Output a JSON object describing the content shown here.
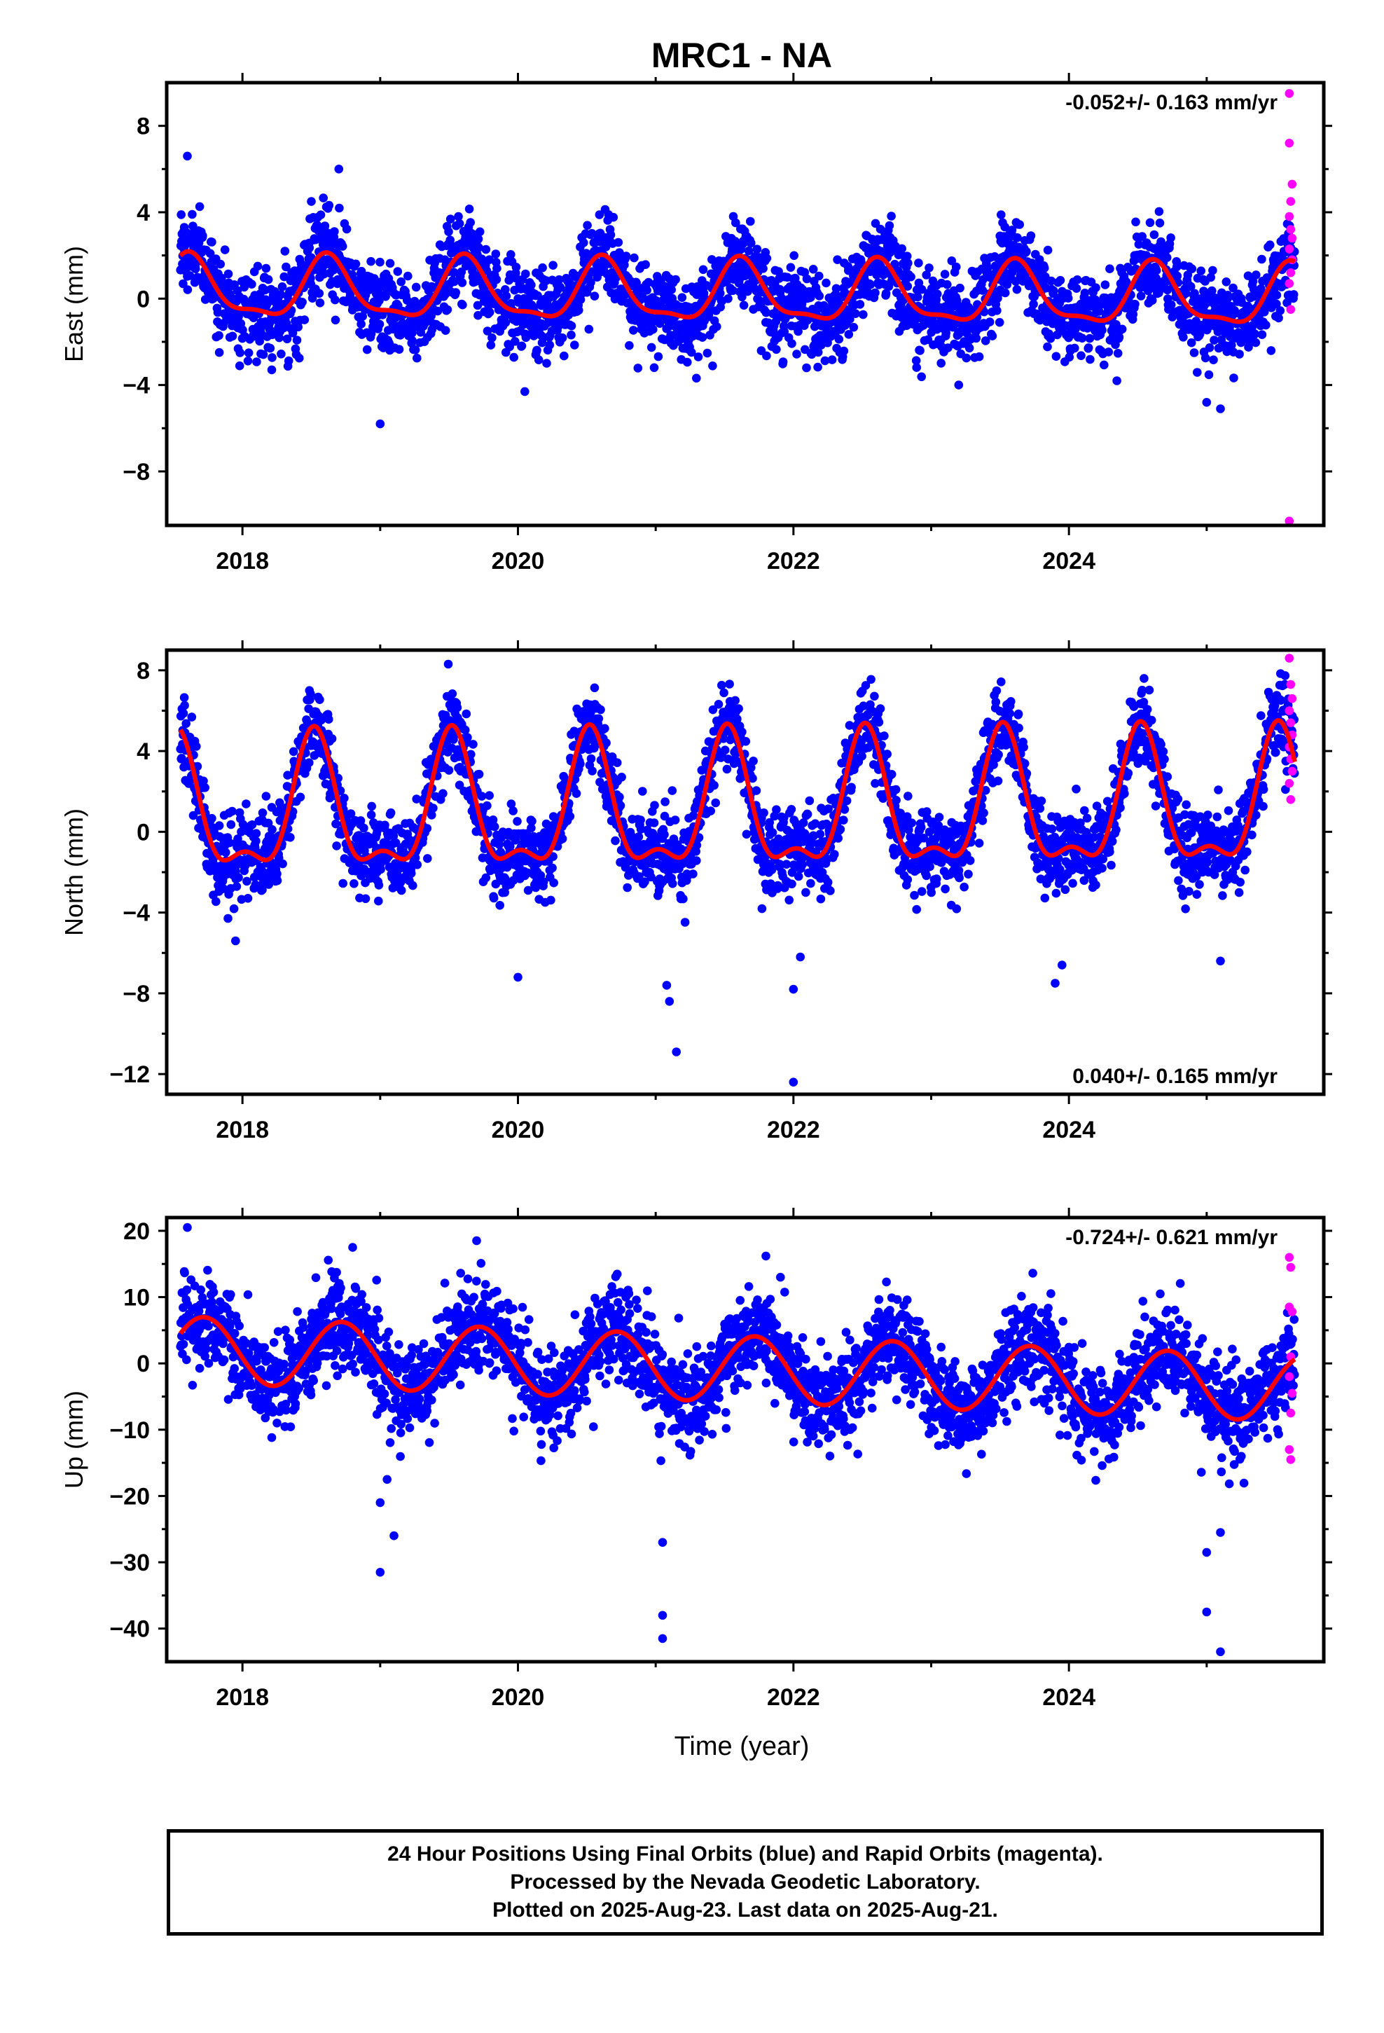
{
  "title": "MRC1 - NA",
  "xlabel": "Time (year)",
  "caption": {
    "line1": "24 Hour Positions Using Final Orbits (blue) and Rapid Orbits (magenta).",
    "line2": "Processed by the Nevada Geodetic Laboratory.",
    "line3": "Plotted on 2025-Aug-23. Last data on 2025-Aug-21."
  },
  "colors": {
    "final": "#0000ff",
    "rapid": "#ff00ff",
    "model": "#ff0000",
    "frame": "#000000"
  },
  "chart_data": [
    {
      "type": "scatter",
      "ylabel": "East (mm)",
      "rate_label": "-0.052+/- 0.163 mm/yr",
      "rate_position": "top-right",
      "xlim": [
        2017.45,
        2025.85
      ],
      "ylim": [
        -10.5,
        10
      ],
      "yticks": [
        8,
        4,
        0,
        -4,
        -8
      ],
      "ytick_labels": [
        "8",
        "4",
        "0",
        "−4",
        "−8"
      ],
      "xticks": [
        2018,
        2020,
        2022,
        2024
      ],
      "xtick_labels": [
        "2018",
        "2020",
        "2022",
        "2024"
      ],
      "date_start": 2017.55,
      "date_end": 2025.64,
      "model": {
        "offset": 0.4,
        "rate": -0.052,
        "annual_amp": 1.35,
        "annual_peak": 0.62,
        "semi_amp": 0.45,
        "semi_peak": 0.6
      },
      "noise_sd": 1.0,
      "final_series": "final orbits",
      "rapid_series": "rapid orbits",
      "outliers": [
        [
          2019.0,
          -5.8
        ],
        [
          2017.6,
          6.6
        ],
        [
          2018.7,
          6.0
        ],
        [
          2018.5,
          4.5
        ],
        [
          2025.1,
          -5.1
        ],
        [
          2025.0,
          -4.8
        ],
        [
          2020.05,
          -4.3
        ],
        [
          2023.2,
          -4.0
        ]
      ],
      "rapid_points": [
        [
          2025.6,
          9.5
        ],
        [
          2025.6,
          7.2
        ],
        [
          2025.62,
          5.3
        ],
        [
          2025.61,
          4.5
        ],
        [
          2025.6,
          3.8
        ],
        [
          2025.61,
          3.2
        ],
        [
          2025.62,
          2.8
        ],
        [
          2025.6,
          2.3
        ],
        [
          2025.62,
          1.8
        ],
        [
          2025.61,
          1.2
        ],
        [
          2025.6,
          0.7
        ],
        [
          2025.61,
          -0.5
        ],
        [
          2025.6,
          -10.3
        ]
      ]
    },
    {
      "type": "scatter",
      "ylabel": "North (mm)",
      "rate_label": "0.040+/- 0.165 mm/yr",
      "rate_position": "bottom-right",
      "xlim": [
        2017.45,
        2025.85
      ],
      "ylim": [
        -13,
        9
      ],
      "yticks": [
        8,
        4,
        0,
        -4,
        -8,
        -12
      ],
      "ytick_labels": [
        "8",
        "4",
        "0",
        "−4",
        "−8",
        "−12"
      ],
      "xticks": [
        2018,
        2020,
        2022,
        2024
      ],
      "xtick_labels": [
        "2018",
        "2020",
        "2022",
        "2024"
      ],
      "date_start": 2017.55,
      "date_end": 2025.64,
      "model": {
        "offset": 0.8,
        "rate": 0.04,
        "annual_amp": 3.1,
        "annual_peak": 0.52,
        "semi_amp": 1.3,
        "semi_peak": 0.52
      },
      "noise_sd": 1.0,
      "final_series": "final orbits",
      "rapid_series": "rapid orbits",
      "outliers": [
        [
          2021.1,
          -8.4
        ],
        [
          2021.15,
          -10.9
        ],
        [
          2021.08,
          -7.6
        ],
        [
          2022.0,
          -7.8
        ],
        [
          2022.05,
          -6.2
        ],
        [
          2022.0,
          -12.4
        ],
        [
          2020.0,
          -7.2
        ],
        [
          2023.9,
          -7.5
        ],
        [
          2023.95,
          -6.6
        ],
        [
          2025.1,
          -6.4
        ],
        [
          2017.95,
          -5.4
        ]
      ],
      "rapid_points": [
        [
          2025.6,
          8.6
        ],
        [
          2025.61,
          7.3
        ],
        [
          2025.62,
          6.6
        ],
        [
          2025.6,
          6.0
        ],
        [
          2025.61,
          5.4
        ],
        [
          2025.62,
          4.8
        ],
        [
          2025.6,
          4.2
        ],
        [
          2025.61,
          3.6
        ],
        [
          2025.62,
          3.0
        ],
        [
          2025.6,
          2.4
        ],
        [
          2025.61,
          1.6
        ]
      ]
    },
    {
      "type": "scatter",
      "ylabel": "Up (mm)",
      "rate_label": "-0.724+/- 0.621 mm/yr",
      "rate_position": "top-right",
      "xlim": [
        2017.45,
        2025.85
      ],
      "ylim": [
        -45,
        22
      ],
      "yticks": [
        20,
        10,
        0,
        -10,
        -20,
        -30,
        -40
      ],
      "ytick_labels": [
        "20",
        "10",
        "0",
        "−10",
        "−20",
        "−30",
        "−40"
      ],
      "xticks": [
        2018,
        2020,
        2022,
        2024
      ],
      "xtick_labels": [
        "2018",
        "2020",
        "2022",
        "2024"
      ],
      "date_start": 2017.55,
      "date_end": 2025.64,
      "model": {
        "offset": 2.1,
        "rate": -0.724,
        "annual_amp": 5.0,
        "annual_peak": 0.72,
        "semi_amp": 0.0,
        "semi_peak": 0.0
      },
      "noise_sd": 3.6,
      "final_series": "final orbits",
      "rapid_series": "rapid orbits",
      "outliers": [
        [
          2017.6,
          20.5
        ],
        [
          2019.0,
          -31.5
        ],
        [
          2019.0,
          -21.0
        ],
        [
          2019.1,
          -26.0
        ],
        [
          2019.05,
          -17.5
        ],
        [
          2021.05,
          -27.0
        ],
        [
          2021.05,
          -38.0
        ],
        [
          2021.05,
          -41.5
        ],
        [
          2025.0,
          -28.5
        ],
        [
          2025.1,
          -25.5
        ],
        [
          2025.0,
          -37.5
        ],
        [
          2025.1,
          -43.5
        ],
        [
          2019.7,
          18.5
        ],
        [
          2018.8,
          17.5
        ],
        [
          2021.8,
          16.2
        ]
      ],
      "rapid_points": [
        [
          2025.6,
          16.0
        ],
        [
          2025.61,
          14.5
        ],
        [
          2025.6,
          8.5
        ],
        [
          2025.62,
          7.8
        ],
        [
          2025.61,
          1.0
        ],
        [
          2025.6,
          -2.0
        ],
        [
          2025.62,
          -4.5
        ],
        [
          2025.61,
          -7.5
        ],
        [
          2025.6,
          -13.0
        ],
        [
          2025.61,
          -14.5
        ]
      ]
    }
  ]
}
